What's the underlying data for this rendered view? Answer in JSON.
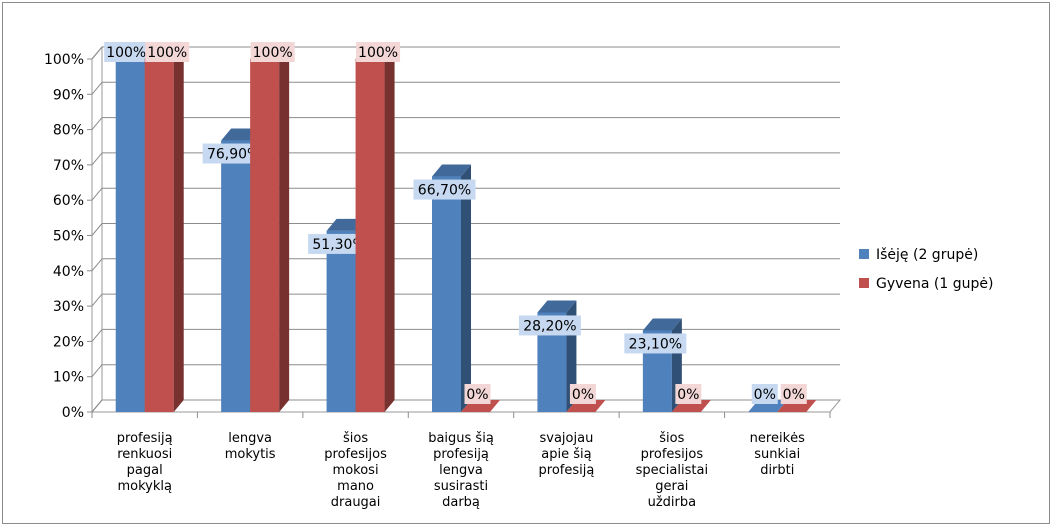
{
  "chart_data": {
    "type": "bar",
    "title": "",
    "xlabel": "",
    "ylabel": "",
    "ylim": [
      0,
      100
    ],
    "y_ticks": [
      "0%",
      "10%",
      "20%",
      "30%",
      "40%",
      "50%",
      "60%",
      "70%",
      "80%",
      "90%",
      "100%"
    ],
    "grid": true,
    "legend_position": "right",
    "categories": [
      [
        "profesiją",
        "renkuosi",
        "pagal",
        "mokyklą"
      ],
      [
        "lengva",
        "mokytis"
      ],
      [
        "šios",
        "profesijos",
        "mokosi",
        "mano",
        "draugai"
      ],
      [
        "baigus šią",
        "profesiją",
        "lengva",
        "susirasti",
        "darbą"
      ],
      [
        "svajojau",
        "apie šią",
        "profesiją"
      ],
      [
        "šios",
        "profesijos",
        "specialistai",
        "gerai",
        "uždirba"
      ],
      [
        "nereikės",
        "sunkiai",
        "dirbti"
      ]
    ],
    "series": [
      {
        "name": "Išėję (2 grupė)",
        "color": "#4f81bd",
        "values": [
          100,
          76.9,
          51.3,
          66.7,
          28.2,
          23.1,
          0
        ],
        "labels": [
          "100%",
          "76,90%",
          "51,30%",
          "66,70%",
          "28,20%",
          "23,10%",
          "0%"
        ]
      },
      {
        "name": "Gyvena (1 gupė)",
        "color": "#c0504d",
        "values": [
          100,
          100,
          100,
          0,
          0,
          0,
          0
        ],
        "labels": [
          "100%",
          "100%",
          "100%",
          "0%",
          "0%",
          "0%",
          "0%"
        ]
      }
    ]
  }
}
